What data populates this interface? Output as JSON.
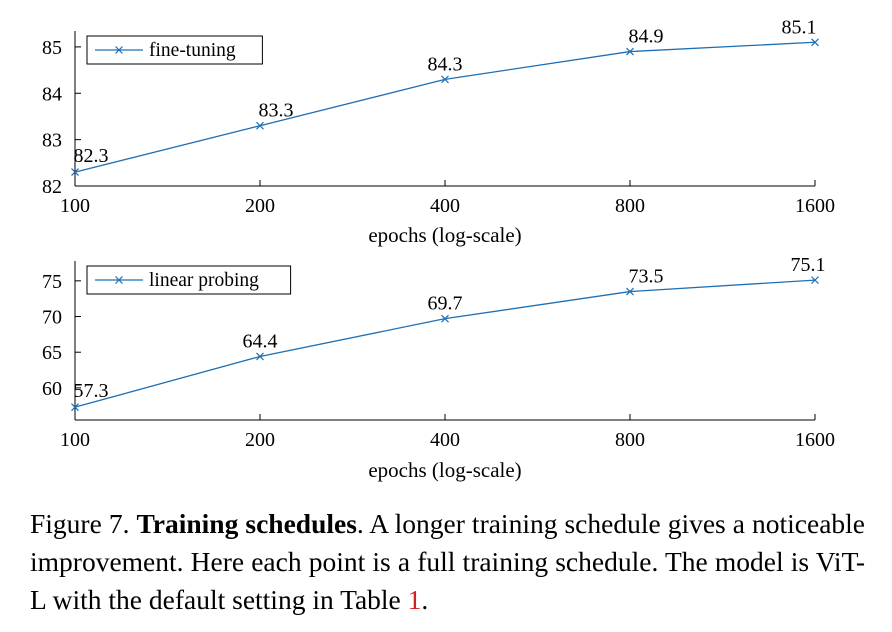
{
  "chart_data": [
    {
      "type": "line",
      "scale": "log2",
      "x": [
        100,
        200,
        400,
        800,
        1600
      ],
      "xlabel": "epochs (log-scale)",
      "xticks": [
        "100",
        "200",
        "400",
        "800",
        "1600"
      ],
      "ylim": [
        82,
        85.3
      ],
      "yticks": [
        "82",
        "83",
        "84",
        "85"
      ],
      "grid": false,
      "legend_position": "top-left",
      "series": [
        {
          "name": "fine-tuning",
          "values": [
            82.3,
            83.3,
            84.3,
            84.9,
            85.1
          ],
          "labels": [
            "82.3",
            "83.3",
            "84.3",
            "84.9",
            "85.1"
          ],
          "color": "#1f6fb4",
          "marker": "x"
        }
      ]
    },
    {
      "type": "line",
      "scale": "log2",
      "x": [
        100,
        200,
        400,
        800,
        1600
      ],
      "xlabel": "epochs (log-scale)",
      "xticks": [
        "100",
        "200",
        "400",
        "800",
        "1600"
      ],
      "ylim": [
        55.5,
        77.5
      ],
      "yticks": [
        "60",
        "65",
        "70",
        "75"
      ],
      "grid": false,
      "legend_position": "top-left",
      "series": [
        {
          "name": "linear probing",
          "values": [
            57.3,
            64.4,
            69.7,
            73.5,
            75.1
          ],
          "labels": [
            "57.3",
            "64.4",
            "69.7",
            "73.5",
            "75.1"
          ],
          "color": "#1f6fb4",
          "marker": "x"
        }
      ]
    }
  ],
  "caption": {
    "prefix": "Figure 7. ",
    "bold": "Training schedules",
    "text": ". A longer training schedule gives a noticeable improvement. Here each point is a full training schedule. The model is ViT-L with the default setting in Table ",
    "ref": "1",
    "suffix": "."
  }
}
